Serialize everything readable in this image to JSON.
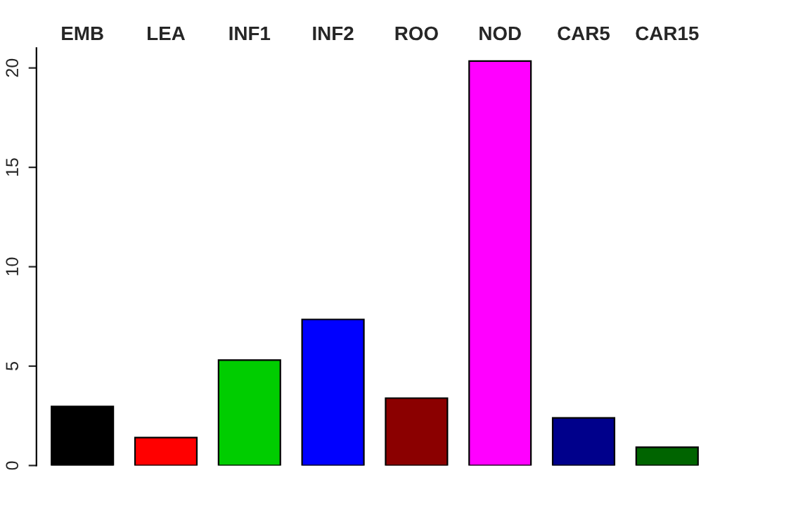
{
  "chart_data": {
    "type": "bar",
    "categories": [
      "EMB",
      "LEA",
      "INF1",
      "INF2",
      "ROO",
      "NOD",
      "CAR5",
      "CAR15"
    ],
    "values": [
      2.97,
      1.41,
      5.3,
      7.35,
      3.39,
      20.35,
      2.4,
      0.92
    ],
    "colors": [
      "#000000",
      "#ff0000",
      "#00cd00",
      "#0000ff",
      "#8b0000",
      "#ff00ff",
      "#00008b",
      "#006400"
    ],
    "ylim": [
      0,
      21
    ],
    "yticks": [
      0,
      5,
      10,
      15,
      20
    ],
    "grid": false,
    "legend": false
  }
}
